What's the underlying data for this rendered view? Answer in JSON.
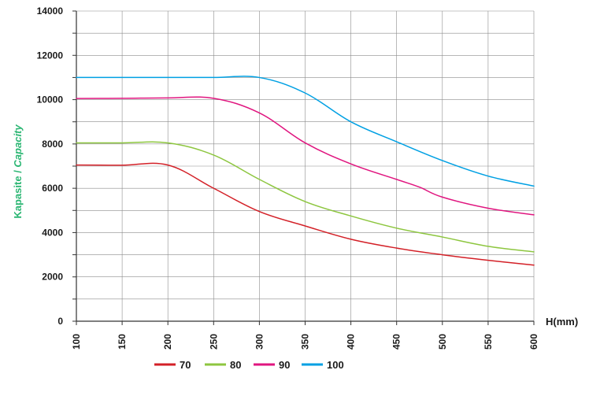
{
  "chart_data": {
    "type": "line",
    "title": "",
    "ylabel_main": "Kapasite",
    "ylabel_sep": " / ",
    "ylabel_italic": "Capacity",
    "ylabel_color": "#2bb673",
    "xlabel": "H(mm)",
    "xlim": [
      100,
      600
    ],
    "ylim": [
      0,
      14000
    ],
    "xticks": [
      100,
      150,
      200,
      250,
      300,
      350,
      400,
      450,
      500,
      550,
      600
    ],
    "yticks": [
      0,
      2000,
      4000,
      6000,
      8000,
      10000,
      12000,
      14000
    ],
    "grid": true,
    "legend_position": "bottom",
    "series": [
      {
        "name": "70",
        "color": "#d32027",
        "points": [
          [
            100,
            7050
          ],
          [
            150,
            7040
          ],
          [
            200,
            7050
          ],
          [
            250,
            6000
          ],
          [
            300,
            4950
          ],
          [
            350,
            4300
          ],
          [
            400,
            3700
          ],
          [
            450,
            3300
          ],
          [
            500,
            3000
          ],
          [
            550,
            2750
          ],
          [
            600,
            2530
          ]
        ]
      },
      {
        "name": "80",
        "color": "#8dc63f",
        "points": [
          [
            100,
            8050
          ],
          [
            150,
            8050
          ],
          [
            200,
            8050
          ],
          [
            250,
            7500
          ],
          [
            300,
            6400
          ],
          [
            350,
            5400
          ],
          [
            400,
            4750
          ],
          [
            450,
            4200
          ],
          [
            500,
            3800
          ],
          [
            550,
            3380
          ],
          [
            600,
            3130
          ]
        ]
      },
      {
        "name": "90",
        "color": "#e0157f",
        "points": [
          [
            100,
            10050
          ],
          [
            150,
            10060
          ],
          [
            200,
            10080
          ],
          [
            250,
            10060
          ],
          [
            300,
            9400
          ],
          [
            350,
            8050
          ],
          [
            400,
            7100
          ],
          [
            450,
            6400
          ],
          [
            475,
            6050
          ],
          [
            500,
            5600
          ],
          [
            550,
            5100
          ],
          [
            600,
            4800
          ]
        ]
      },
      {
        "name": "100",
        "color": "#00a0e3",
        "points": [
          [
            100,
            11000
          ],
          [
            150,
            11000
          ],
          [
            200,
            11000
          ],
          [
            250,
            11000
          ],
          [
            300,
            11000
          ],
          [
            350,
            10300
          ],
          [
            400,
            9000
          ],
          [
            450,
            8100
          ],
          [
            500,
            7250
          ],
          [
            550,
            6550
          ],
          [
            600,
            6100
          ]
        ]
      }
    ]
  }
}
